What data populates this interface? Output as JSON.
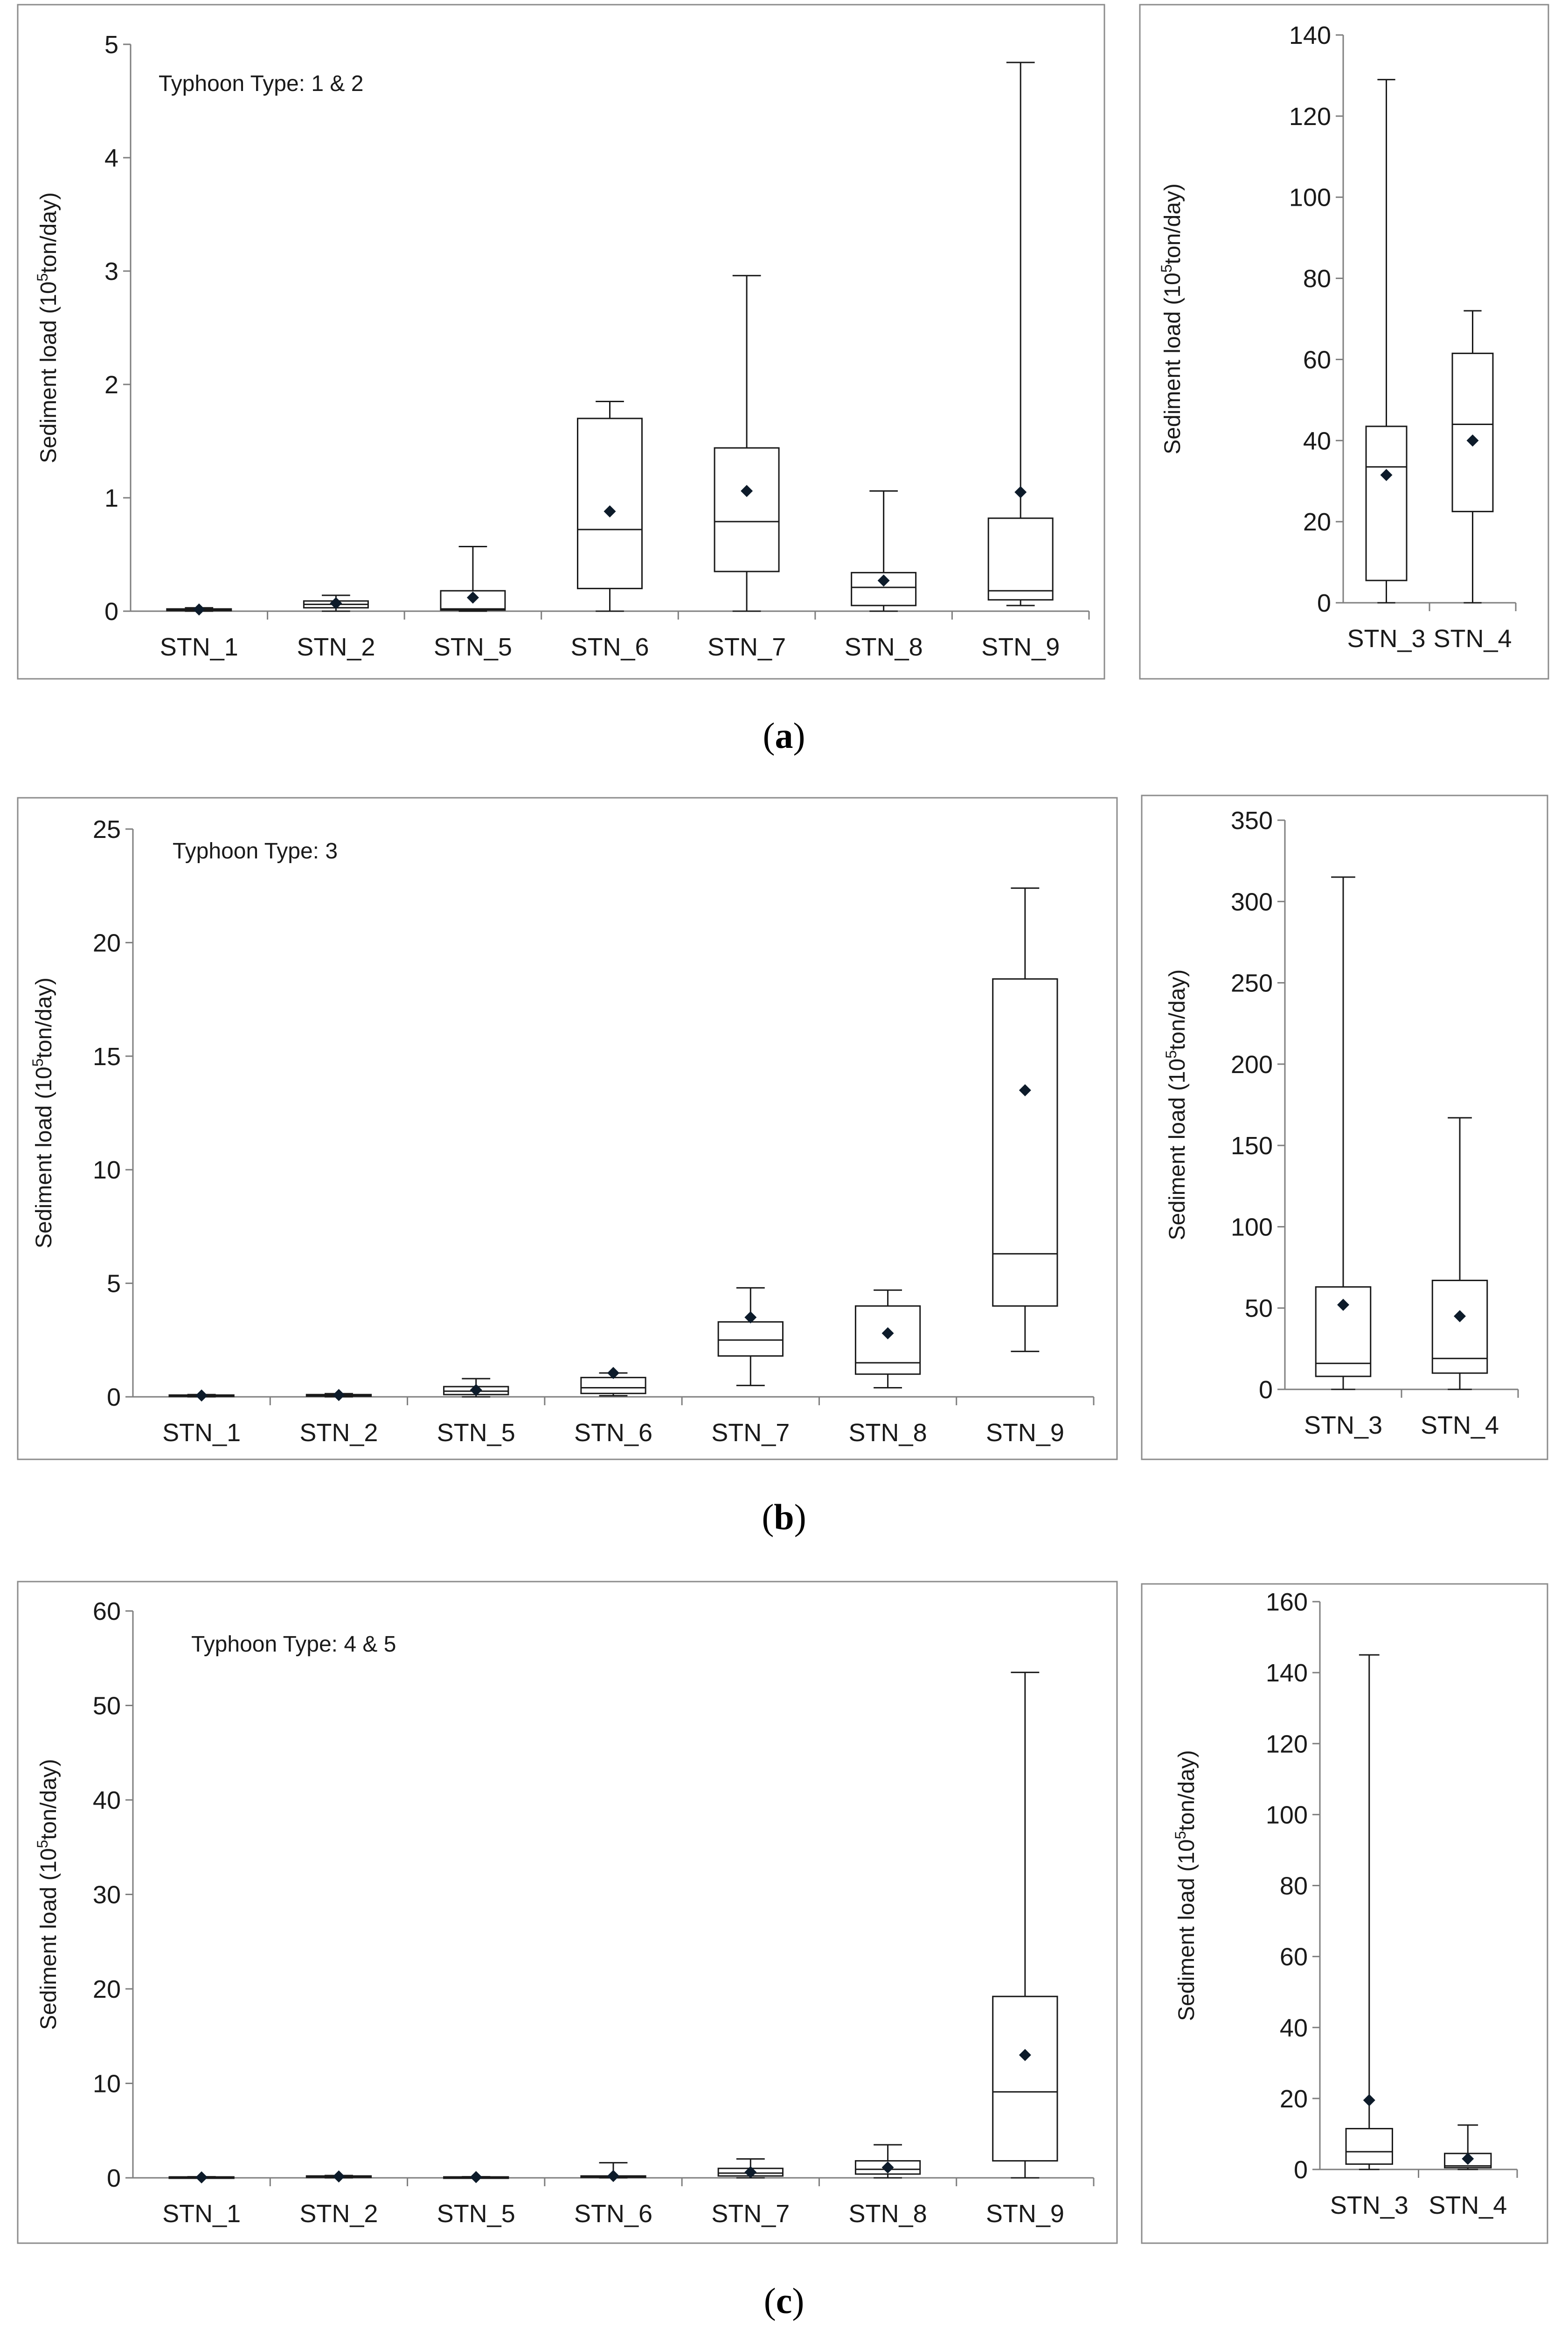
{
  "colors": {
    "frame": "#8c8c8c",
    "axis": "#7f7f7f",
    "box": "#1a1a1a",
    "mean": "#0d1b2a",
    "text": "#1a1a1a"
  },
  "ylabel_prefix": "Sediment load (10",
  "ylabel_sup": "5",
  "ylabel_suffix": "ton/day)",
  "panels": [
    {
      "caption_open": "(",
      "caption_letter": "a",
      "caption_close": ")",
      "chart_data": [
        {
          "type": "box",
          "title": "",
          "annotation": "Typhoon Type: 1 & 2",
          "ylabel": "Sediment load (10^5 ton/day)",
          "ylim": [
            0,
            5
          ],
          "yticks": [
            "0",
            "1",
            "2",
            "3",
            "4",
            "5"
          ],
          "categories": [
            "STN_1",
            "STN_2",
            "STN_5",
            "STN_6",
            "STN_7",
            "STN_8",
            "STN_9"
          ],
          "series": [
            {
              "name": "STN_1",
              "min": 0.0,
              "q1": 0.005,
              "median": 0.01,
              "q3": 0.02,
              "max": 0.03,
              "mean": 0.015
            },
            {
              "name": "STN_2",
              "min": 0.0,
              "q1": 0.03,
              "median": 0.06,
              "q3": 0.09,
              "max": 0.14,
              "mean": 0.07
            },
            {
              "name": "STN_5",
              "min": 0.0,
              "q1": 0.01,
              "median": 0.02,
              "q3": 0.18,
              "max": 0.57,
              "mean": 0.12
            },
            {
              "name": "STN_6",
              "min": 0.0,
              "q1": 0.2,
              "median": 0.72,
              "q3": 1.7,
              "max": 1.85,
              "mean": 0.88
            },
            {
              "name": "STN_7",
              "min": 0.0,
              "q1": 0.35,
              "median": 0.79,
              "q3": 1.44,
              "max": 2.96,
              "mean": 1.06
            },
            {
              "name": "STN_8",
              "min": 0.0,
              "q1": 0.05,
              "median": 0.21,
              "q3": 0.34,
              "max": 1.06,
              "mean": 0.27
            },
            {
              "name": "STN_9",
              "min": 0.05,
              "q1": 0.1,
              "median": 0.18,
              "q3": 0.82,
              "max": 4.84,
              "mean": 1.05
            }
          ]
        },
        {
          "type": "box",
          "title": "",
          "annotation": "",
          "ylabel": "Sediment load (10^5 ton/day)",
          "ylim": [
            0,
            140
          ],
          "yticks": [
            "0",
            "20",
            "40",
            "60",
            "80",
            "100",
            "120",
            "140"
          ],
          "categories": [
            "STN_3",
            "STN_4"
          ],
          "series": [
            {
              "name": "STN_3",
              "min": 0.0,
              "q1": 5.5,
              "median": 33.5,
              "q3": 43.5,
              "max": 129.0,
              "mean": 31.5
            },
            {
              "name": "STN_4",
              "min": 0.0,
              "q1": 22.5,
              "median": 44.0,
              "q3": 61.5,
              "max": 72.0,
              "mean": 40.0
            }
          ]
        }
      ]
    },
    {
      "caption_open": "(",
      "caption_letter": "b",
      "caption_close": ")",
      "chart_data": [
        {
          "type": "box",
          "title": "",
          "annotation": "Typhoon Type: 3",
          "ylabel": "Sediment load (10^5 ton/day)",
          "ylim": [
            0,
            25
          ],
          "yticks": [
            "0",
            "5",
            "10",
            "15",
            "20",
            "25"
          ],
          "categories": [
            "STN_1",
            "STN_2",
            "STN_5",
            "STN_6",
            "STN_7",
            "STN_8",
            "STN_9"
          ],
          "series": [
            {
              "name": "STN_1",
              "min": 0.0,
              "q1": 0.02,
              "median": 0.05,
              "q3": 0.08,
              "max": 0.1,
              "mean": 0.06
            },
            {
              "name": "STN_2",
              "min": 0.0,
              "q1": 0.03,
              "median": 0.06,
              "q3": 0.1,
              "max": 0.14,
              "mean": 0.08
            },
            {
              "name": "STN_5",
              "min": 0.0,
              "q1": 0.1,
              "median": 0.25,
              "q3": 0.45,
              "max": 0.8,
              "mean": 0.3
            },
            {
              "name": "STN_6",
              "min": 0.05,
              "q1": 0.15,
              "median": 0.4,
              "q3": 0.85,
              "max": 1.05,
              "mean": 1.05
            },
            {
              "name": "STN_7",
              "min": 0.5,
              "q1": 1.8,
              "median": 2.5,
              "q3": 3.3,
              "max": 4.8,
              "mean": 3.5
            },
            {
              "name": "STN_8",
              "min": 0.4,
              "q1": 1.0,
              "median": 1.5,
              "q3": 4.0,
              "max": 4.7,
              "mean": 2.8
            },
            {
              "name": "STN_9",
              "min": 2.0,
              "q1": 4.0,
              "median": 6.3,
              "q3": 18.4,
              "max": 22.4,
              "mean": 13.5
            }
          ]
        },
        {
          "type": "box",
          "title": "",
          "annotation": "",
          "ylabel": "Sediment load (10^5 ton/day)",
          "ylim": [
            0,
            350
          ],
          "yticks": [
            "0",
            "50",
            "100",
            "150",
            "200",
            "250",
            "300",
            "350"
          ],
          "categories": [
            "STN_3",
            "STN_4"
          ],
          "series": [
            {
              "name": "STN_3",
              "min": 0.0,
              "q1": 8.0,
              "median": 16.0,
              "q3": 63.0,
              "max": 315.0,
              "mean": 52.0
            },
            {
              "name": "STN_4",
              "min": 0.0,
              "q1": 10.0,
              "median": 19.0,
              "q3": 67.0,
              "max": 167.0,
              "mean": 45.0
            }
          ]
        }
      ]
    },
    {
      "caption_open": "(",
      "caption_letter": "c",
      "caption_close": ")",
      "chart_data": [
        {
          "type": "box",
          "title": "",
          "annotation": "Typhoon Type: 4 & 5",
          "ylabel": "Sediment load (10^5 ton/day)",
          "ylim": [
            0,
            60
          ],
          "yticks": [
            "0",
            "10",
            "20",
            "30",
            "40",
            "50",
            "60"
          ],
          "categories": [
            "STN_1",
            "STN_2",
            "STN_5",
            "STN_6",
            "STN_7",
            "STN_8",
            "STN_9"
          ],
          "series": [
            {
              "name": "STN_1",
              "min": 0.0,
              "q1": 0.02,
              "median": 0.05,
              "q3": 0.1,
              "max": 0.12,
              "mean": 0.05
            },
            {
              "name": "STN_2",
              "min": 0.0,
              "q1": 0.05,
              "median": 0.1,
              "q3": 0.2,
              "max": 0.25,
              "mean": 0.15
            },
            {
              "name": "STN_5",
              "min": 0.0,
              "q1": 0.03,
              "median": 0.06,
              "q3": 0.1,
              "max": 0.12,
              "mean": 0.08
            },
            {
              "name": "STN_6",
              "min": 0.0,
              "q1": 0.05,
              "median": 0.1,
              "q3": 0.2,
              "max": 1.6,
              "mean": 0.2
            },
            {
              "name": "STN_7",
              "min": 0.0,
              "q1": 0.2,
              "median": 0.5,
              "q3": 1.0,
              "max": 2.0,
              "mean": 0.6
            },
            {
              "name": "STN_8",
              "min": 0.0,
              "q1": 0.4,
              "median": 0.9,
              "q3": 1.8,
              "max": 3.5,
              "mean": 1.1
            },
            {
              "name": "STN_9",
              "min": 0.0,
              "q1": 1.8,
              "median": 9.1,
              "q3": 19.2,
              "max": 53.5,
              "mean": 13.0
            }
          ]
        },
        {
          "type": "box",
          "title": "",
          "annotation": "",
          "ylabel": "Sediment load (10^5 ton/day)",
          "ylim": [
            0,
            160
          ],
          "yticks": [
            "0",
            "20",
            "40",
            "60",
            "80",
            "100",
            "120",
            "140",
            "160"
          ],
          "categories": [
            "STN_3",
            "STN_4"
          ],
          "series": [
            {
              "name": "STN_3",
              "min": 0.0,
              "q1": 1.5,
              "median": 5.0,
              "q3": 11.5,
              "max": 145.0,
              "mean": 19.5
            },
            {
              "name": "STN_4",
              "min": 0.0,
              "q1": 0.5,
              "median": 1.0,
              "q3": 4.5,
              "max": 12.5,
              "mean": 3.0
            }
          ]
        }
      ]
    }
  ]
}
